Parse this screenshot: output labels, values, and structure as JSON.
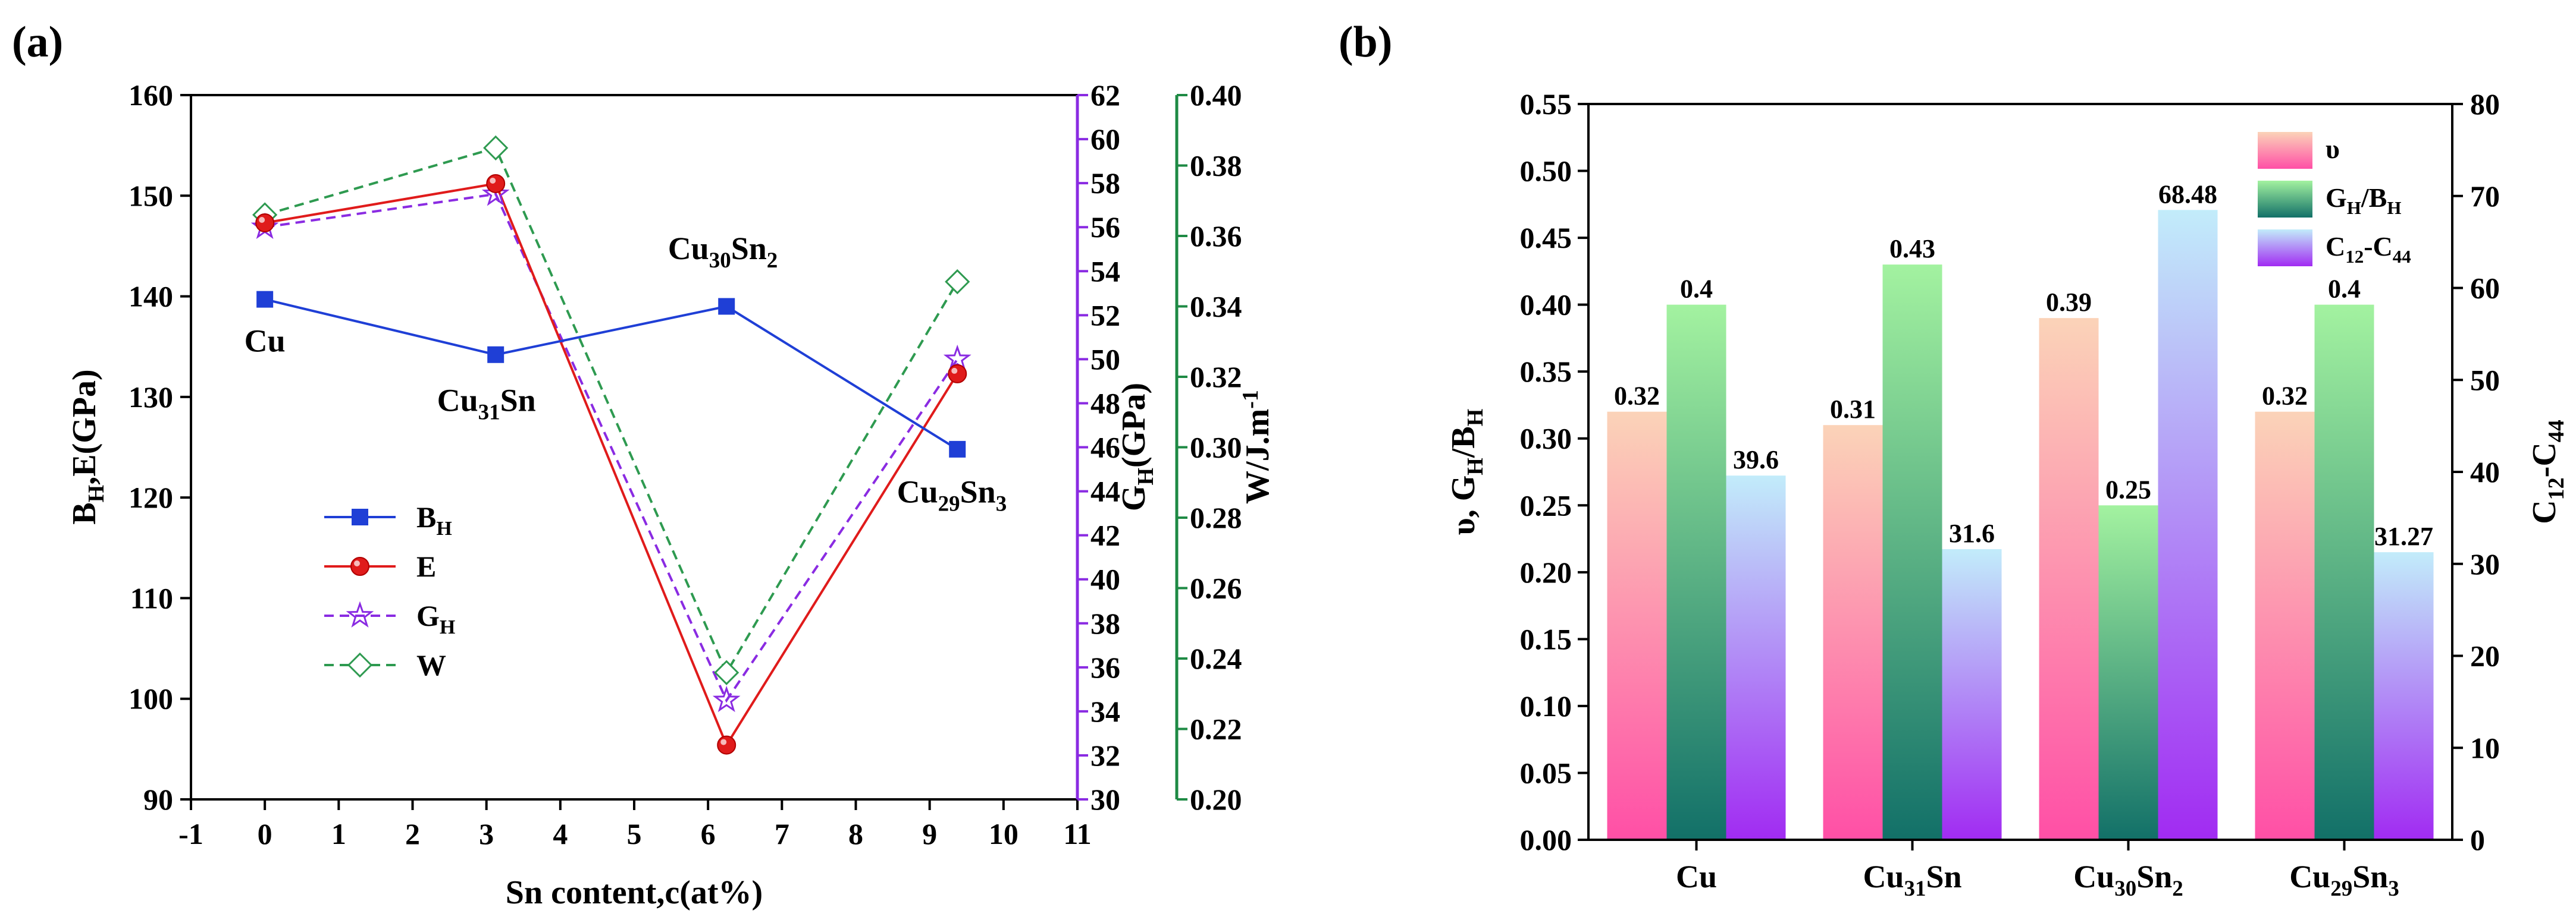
{
  "chart_data": [
    {
      "panel_label": "(a)",
      "type": "line",
      "xlabel": "Sn content,c(at%)",
      "xlim": [
        -1,
        11
      ],
      "xticks": [
        "-1",
        "0",
        "1",
        "2",
        "3",
        "4",
        "5",
        "6",
        "7",
        "8",
        "9",
        "10",
        "11"
      ],
      "x": [
        0,
        3.125,
        6.25,
        9.375
      ],
      "axes": {
        "left": {
          "label": "BH,E(GPa)",
          "label_main": "B",
          "label_sub": "H",
          "label_tail": ",E(GPa)",
          "ylim": [
            90,
            160
          ],
          "ticks": [
            "90",
            "100",
            "110",
            "120",
            "130",
            "140",
            "150",
            "160"
          ],
          "color": "#000000"
        },
        "right1": {
          "label": "GH(GPa)",
          "label_main": "G",
          "label_sub": "H",
          "label_tail": "(GPa)",
          "ylim": [
            30,
            62
          ],
          "ticks": [
            "30",
            "32",
            "34",
            "36",
            "38",
            "40",
            "42",
            "44",
            "46",
            "48",
            "50",
            "52",
            "54",
            "56",
            "58",
            "60",
            "62"
          ],
          "color": "#8a2be2"
        },
        "right2": {
          "label": "W/J.m-1",
          "label_main": "W/J.m",
          "label_sup": "-1",
          "ylim": [
            0.2,
            0.4
          ],
          "ticks": [
            "0.20",
            "0.22",
            "0.24",
            "0.26",
            "0.28",
            "0.30",
            "0.32",
            "0.34",
            "0.36",
            "0.38",
            "0.40"
          ],
          "color": "#1e8a44"
        }
      },
      "series": [
        {
          "name": "BH",
          "name_main": "B",
          "name_sub": "H",
          "axis": "left",
          "color": "#1f3fd6",
          "marker": "square",
          "dash": "solid",
          "values": [
            139.7,
            134.2,
            139.0,
            124.8
          ]
        },
        {
          "name": "E",
          "name_main": "E",
          "name_sub": "",
          "axis": "left",
          "color": "#e01b1b",
          "marker": "circle",
          "dash": "solid",
          "values": [
            147.3,
            151.2,
            95.4,
            132.3
          ]
        },
        {
          "name": "GH",
          "name_main": "G",
          "name_sub": "H",
          "axis": "right1",
          "color": "#8a2be2",
          "marker": "star",
          "dash": "dashed",
          "values": [
            56.0,
            57.5,
            34.5,
            50.0
          ]
        },
        {
          "name": "W",
          "name_main": "W",
          "name_sub": "",
          "axis": "right2",
          "color": "#2e9a50",
          "marker": "diamond",
          "dash": "dashed",
          "values": [
            0.366,
            0.385,
            0.236,
            0.347
          ]
        }
      ],
      "annotations": [
        {
          "main": "Cu",
          "sub": "",
          "tail": "",
          "x": 0,
          "y": 134.5
        },
        {
          "main": "Cu",
          "sub": "31",
          "tail": "Sn",
          "x": 3.0,
          "y": 128.6
        },
        {
          "main": "Cu",
          "sub": "30",
          "tail": "Sn",
          "sub2": "2",
          "x": 6.2,
          "y": 143.7
        },
        {
          "main": "Cu",
          "sub": "29",
          "tail": "Sn",
          "sub2": "3",
          "x": 9.3,
          "y": 119.5
        }
      ]
    },
    {
      "panel_label": "(b)",
      "type": "bar",
      "categories": [
        {
          "main": "Cu",
          "sub": "",
          "tail": "",
          "sub2": ""
        },
        {
          "main": "Cu",
          "sub": "31",
          "tail": "Sn",
          "sub2": ""
        },
        {
          "main": "Cu",
          "sub": "30",
          "tail": "Sn",
          "sub2": "2"
        },
        {
          "main": "Cu",
          "sub": "29",
          "tail": "Sn",
          "sub2": "3"
        }
      ],
      "ylabel": "υ, GH/BH",
      "ylabel_parts": {
        "a": "υ, G",
        "b": "H",
        "c": "/B",
        "d": "H"
      },
      "ylim": [
        0,
        0.55
      ],
      "yticks": [
        "0.00",
        "0.05",
        "0.10",
        "0.15",
        "0.20",
        "0.25",
        "0.30",
        "0.35",
        "0.40",
        "0.45",
        "0.50",
        "0.55"
      ],
      "y2label": "C12-C44",
      "y2label_parts": {
        "a": "C",
        "b": "12",
        "c": "-C",
        "d": "44"
      },
      "y2lim": [
        0,
        80
      ],
      "y2ticks": [
        "0",
        "10",
        "20",
        "30",
        "40",
        "50",
        "60",
        "70",
        "80"
      ],
      "series": [
        {
          "name": "υ",
          "legend_main": "υ",
          "legend_sub": "",
          "axis": "left",
          "top_color": "#fbd3b8",
          "bottom_color": "#ff4fa6",
          "values": [
            0.32,
            0.31,
            0.39,
            0.32
          ],
          "labels": [
            "0.32",
            "0.31",
            "0.39",
            "0.32"
          ]
        },
        {
          "name": "GH/BH",
          "legend_main": "G",
          "legend_sub": "H",
          "legend_tail": "/B",
          "legend_sub2": "H",
          "axis": "left",
          "top_color": "#a3f2a0",
          "bottom_color": "#127068",
          "values": [
            0.4,
            0.43,
            0.25,
            0.4
          ],
          "labels": [
            "0.4",
            "0.43",
            "0.25",
            "0.4"
          ]
        },
        {
          "name": "C12-C44",
          "legend_main": "C",
          "legend_sub": "12",
          "legend_tail": "-C",
          "legend_sub2": "44",
          "axis": "right",
          "top_color": "#c2ecfa",
          "bottom_color": "#a12bf2",
          "values": [
            39.6,
            31.6,
            68.48,
            31.27
          ],
          "labels": [
            "39.6",
            "31.6",
            "68.48",
            "31.27"
          ]
        }
      ]
    }
  ]
}
